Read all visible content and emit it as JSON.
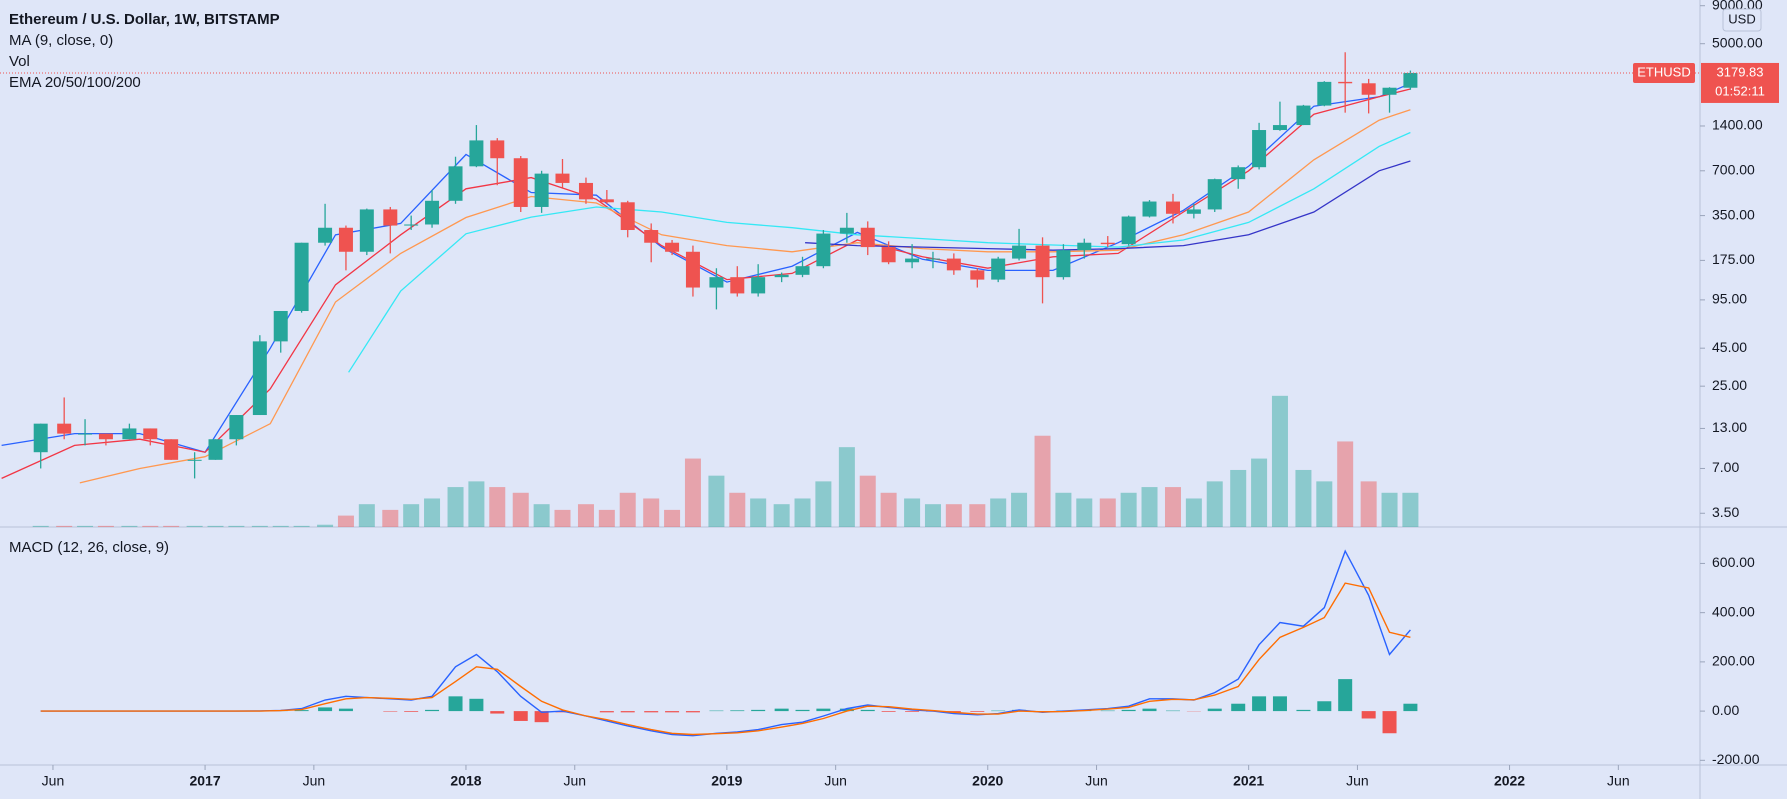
{
  "chart_data": [
    {
      "type": "candlestick",
      "title": "Ethereum / U.S. Dollar, 1W, BITSTAMP",
      "indicators": [
        "MA (9, close, 0)",
        "Vol",
        "EMA 20/50/100/200"
      ],
      "currency": "USD",
      "symbol": "ETHUSD",
      "last_price": 3179.83,
      "countdown": "01:52:11",
      "log_scale": true,
      "up_color": "#26a69a",
      "down_color": "#ef5350",
      "ylim": [
        2.83,
        9830
      ],
      "yticks": [
        {
          "value": 9000,
          "label": "9000.00"
        },
        {
          "value": 5000,
          "label": "5000.00"
        },
        {
          "value": 1400,
          "label": "1400.00"
        },
        {
          "value": 700,
          "label": "700.00"
        },
        {
          "value": 350,
          "label": "350.00"
        },
        {
          "value": 175,
          "label": "175.00"
        },
        {
          "value": 95,
          "label": "95.00"
        },
        {
          "value": 45,
          "label": "45.00"
        },
        {
          "value": 25,
          "label": "25.00"
        },
        {
          "value": 13,
          "label": "13.00"
        },
        {
          "value": 7,
          "label": "7.00"
        },
        {
          "value": 3.5,
          "label": "3.50"
        }
      ],
      "xlim": [
        2016.214,
        2022.73
      ],
      "x": [
        2016.37,
        2016.46,
        2016.54,
        2016.62,
        2016.71,
        2016.79,
        2016.87,
        2016.96,
        2017.04,
        2017.12,
        2017.21,
        2017.29,
        2017.37,
        2017.46,
        2017.54,
        2017.62,
        2017.71,
        2017.79,
        2017.87,
        2017.96,
        2018.04,
        2018.12,
        2018.21,
        2018.29,
        2018.37,
        2018.46,
        2018.54,
        2018.62,
        2018.71,
        2018.79,
        2018.87,
        2018.96,
        2019.04,
        2019.12,
        2019.21,
        2019.29,
        2019.37,
        2019.46,
        2019.54,
        2019.62,
        2019.71,
        2019.79,
        2019.87,
        2019.96,
        2020.04,
        2020.12,
        2020.21,
        2020.29,
        2020.37,
        2020.46,
        2020.54,
        2020.62,
        2020.71,
        2020.79,
        2020.87,
        2020.96,
        2021.04,
        2021.12,
        2021.21,
        2021.29,
        2021.37,
        2021.46,
        2021.54,
        2021.62
      ],
      "open": [
        9,
        14,
        12,
        12,
        11,
        13,
        11,
        8,
        8,
        11,
        16,
        50,
        80,
        230,
        290,
        200,
        385,
        300,
        305,
        440,
        750,
        1120,
        850,
        400,
        670,
        580,
        450,
        430,
        280,
        230,
        200,
        115,
        135,
        105,
        135,
        140,
        160,
        265,
        290,
        215,
        170,
        180,
        180,
        150,
        130,
        180,
        220,
        135,
        205,
        230,
        225,
        345,
        435,
        360,
        385,
        615,
        740,
        1315,
        1420,
        1920,
        2770,
        2710,
        2270,
        2530
      ],
      "high": [
        14,
        21,
        15,
        12,
        14,
        13,
        11,
        9,
        11,
        16,
        55,
        80,
        230,
        420,
        300,
        390,
        400,
        350,
        520,
        870,
        1420,
        1160,
        880,
        700,
        840,
        630,
        520,
        440,
        310,
        240,
        220,
        155,
        160,
        165,
        145,
        185,
        280,
        365,
        320,
        235,
        225,
        200,
        195,
        155,
        185,
        285,
        250,
        225,
        245,
        255,
        350,
        445,
        490,
        420,
        620,
        760,
        1470,
        2040,
        1940,
        2800,
        4380,
        2900,
        2550,
        3300
      ],
      "low": [
        7,
        11,
        10,
        10,
        11,
        10,
        8,
        6,
        8,
        10,
        16,
        42,
        78,
        220,
        150,
        190,
        195,
        280,
        290,
        420,
        740,
        560,
        370,
        365,
        540,
        420,
        420,
        250,
        170,
        190,
        100,
        82,
        100,
        100,
        125,
        135,
        155,
        230,
        190,
        165,
        155,
        155,
        140,
        115,
        125,
        175,
        90,
        130,
        180,
        215,
        220,
        340,
        310,
        335,
        370,
        530,
        715,
        1300,
        1420,
        1900,
        1720,
        1700,
        1720,
        2450
      ],
      "close": [
        14,
        12,
        12,
        11,
        13,
        11,
        8,
        8,
        11,
        16,
        50,
        80,
        230,
        290,
        200,
        385,
        300,
        305,
        440,
        750,
        1120,
        850,
        400,
        670,
        580,
        450,
        430,
        280,
        230,
        200,
        115,
        135,
        105,
        135,
        140,
        160,
        265,
        290,
        215,
        170,
        180,
        180,
        150,
        130,
        180,
        220,
        135,
        205,
        230,
        225,
        345,
        435,
        360,
        385,
        615,
        740,
        1315,
        1420,
        1920,
        2770,
        2710,
        2270,
        2530,
        3180
      ],
      "volume": [
        1,
        1,
        1,
        1,
        1,
        1,
        1,
        1,
        1,
        1,
        1,
        1,
        1,
        2,
        10,
        20,
        15,
        20,
        25,
        35,
        40,
        35,
        30,
        20,
        15,
        20,
        15,
        30,
        25,
        15,
        60,
        45,
        30,
        25,
        20,
        25,
        40,
        70,
        45,
        30,
        25,
        20,
        20,
        20,
        25,
        30,
        80,
        30,
        25,
        25,
        30,
        35,
        35,
        25,
        40,
        50,
        60,
        115,
        50,
        40,
        75,
        40,
        30,
        30
      ],
      "volume_lim": [
        0,
        462
      ],
      "series": [
        {
          "color": "#2962ff",
          "x": [
            2016.22,
            2016.5,
            2016.75,
            2017.0,
            2017.25,
            2017.5,
            2017.75,
            2018.0,
            2018.25,
            2018.5,
            2018.75,
            2019.0,
            2019.25,
            2019.5,
            2019.75,
            2020.0,
            2020.25,
            2020.5,
            2020.75,
            2021.0,
            2021.25,
            2021.5,
            2021.62
          ],
          "values": [
            10,
            12,
            12,
            9,
            45,
            260,
            310,
            900,
            500,
            480,
            215,
            125,
            160,
            270,
            178,
            150,
            150,
            230,
            380,
            750,
            1900,
            2200,
            2700
          ]
        },
        {
          "color": "#f23645",
          "x": [
            2016.22,
            2016.5,
            2016.75,
            2017.0,
            2017.25,
            2017.5,
            2017.75,
            2018.0,
            2018.25,
            2018.5,
            2018.75,
            2019.0,
            2019.25,
            2019.5,
            2019.75,
            2020.0,
            2020.25,
            2020.5,
            2020.75,
            2021.0,
            2021.25,
            2021.5,
            2021.62
          ],
          "values": [
            6,
            10,
            11,
            9,
            24,
            120,
            260,
            530,
            630,
            450,
            220,
            130,
            143,
            240,
            185,
            155,
            185,
            195,
            370,
            700,
            1680,
            2200,
            2480
          ]
        },
        {
          "color": "#ff9850",
          "x": [
            2016.52,
            2016.75,
            2017.0,
            2017.25,
            2017.5,
            2017.75,
            2018.0,
            2018.25,
            2018.5,
            2018.75,
            2019.0,
            2019.25,
            2019.5,
            2019.75,
            2020.0,
            2020.25,
            2020.5,
            2020.75,
            2021.0,
            2021.25,
            2021.5,
            2021.62
          ],
          "values": [
            5.6,
            7,
            8.4,
            14,
            92,
            195,
            340,
            470,
            425,
            260,
            220,
            200,
            230,
            210,
            200,
            200,
            205,
            260,
            370,
            830,
            1530,
            1800
          ]
        },
        {
          "color": "#35e8f5",
          "x": [
            2017.55,
            2017.75,
            2018.0,
            2018.25,
            2018.5,
            2018.75,
            2019.0,
            2019.25,
            2019.5,
            2019.75,
            2020.0,
            2020.25,
            2020.5,
            2020.75,
            2021.0,
            2021.25,
            2021.5,
            2021.62
          ],
          "values": [
            31,
            109,
            264,
            342,
            400,
            370,
            315,
            290,
            260,
            245,
            230,
            222,
            215,
            240,
            315,
            530,
            1020,
            1265
          ]
        },
        {
          "color": "#3535c8",
          "x": [
            2019.3,
            2019.5,
            2019.75,
            2020.0,
            2020.25,
            2020.5,
            2020.75,
            2021.0,
            2021.25,
            2021.5,
            2021.62
          ],
          "values": [
            230,
            220,
            215,
            210,
            205,
            210,
            220,
            260,
            370,
            700,
            815
          ]
        }
      ]
    },
    {
      "type": "macd",
      "title": "MACD (12, 26, close, 9)",
      "ylim": [
        -219,
        744
      ],
      "yticks": [
        {
          "value": 600,
          "label": "600.00"
        },
        {
          "value": 400,
          "label": "400.00"
        },
        {
          "value": 200,
          "label": "200.00"
        },
        {
          "value": 0,
          "label": "0.00"
        },
        {
          "value": -200,
          "label": "-200.00"
        }
      ],
      "xticks": [
        {
          "value": 2016.417,
          "label": "Jun"
        },
        2017,
        {
          "value": 2017.417,
          "label": "Jun"
        },
        2018,
        {
          "value": 2018.417,
          "label": "Jun"
        },
        2019,
        {
          "value": 2019.417,
          "label": "Jun"
        },
        2020,
        {
          "value": 2020.417,
          "label": "Jun"
        },
        2021,
        {
          "value": 2021.417,
          "label": "Jun"
        },
        2022,
        {
          "value": 2022.417,
          "label": "Jun"
        }
      ],
      "histogram": {
        "pos_color": "#26a69a",
        "neg_color": "#ef5350",
        "values": [
          0,
          0,
          0,
          0,
          0,
          0,
          0,
          0,
          0,
          0,
          1,
          1,
          4,
          15,
          10,
          0,
          -2,
          -3,
          5,
          60,
          50,
          -10,
          -40,
          -45,
          -5,
          0,
          -5,
          -5,
          -5,
          -5,
          -5,
          2,
          3,
          5,
          10,
          5,
          10,
          10,
          5,
          -3,
          -3,
          -2,
          -5,
          -3,
          2,
          5,
          -2,
          2,
          3,
          2,
          5,
          10,
          2,
          -1,
          10,
          30,
          60,
          60,
          5,
          40,
          130,
          -30,
          -90,
          30
        ]
      },
      "series": [
        {
          "color": "#2962ff",
          "values": [
            0,
            0,
            0,
            0,
            0,
            0,
            0,
            0,
            0,
            0,
            1,
            3,
            10,
            45,
            60,
            55,
            50,
            45,
            60,
            180,
            230,
            160,
            60,
            -5,
            0,
            -20,
            -40,
            -60,
            -80,
            -95,
            -100,
            -90,
            -85,
            -75,
            -55,
            -45,
            -20,
            10,
            25,
            15,
            5,
            0,
            -10,
            -15,
            -10,
            5,
            -5,
            0,
            5,
            10,
            20,
            50,
            50,
            45,
            75,
            130,
            270,
            360,
            345,
            420,
            650,
            470,
            230,
            330
          ]
        },
        {
          "color": "#ff6d00",
          "values": [
            0,
            0,
            0,
            0,
            0,
            0,
            0,
            0,
            0,
            0,
            0,
            2,
            6,
            30,
            50,
            55,
            52,
            48,
            55,
            120,
            180,
            170,
            100,
            40,
            5,
            -20,
            -35,
            -55,
            -75,
            -90,
            -95,
            -92,
            -88,
            -80,
            -65,
            -50,
            -30,
            0,
            20,
            18,
            8,
            2,
            -5,
            -12,
            -12,
            0,
            -3,
            -2,
            2,
            8,
            15,
            40,
            48,
            46,
            65,
            100,
            210,
            300,
            340,
            380,
            520,
            500,
            320,
            300
          ]
        }
      ]
    }
  ]
}
